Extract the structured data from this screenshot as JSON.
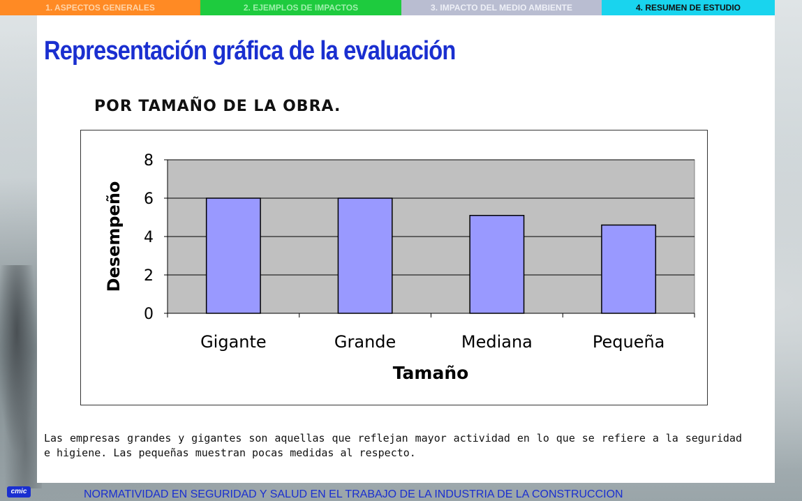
{
  "nav": {
    "tabs": [
      {
        "label": "1. ASPECTOS GENERALES"
      },
      {
        "label": "2. EJEMPLOS DE IMPACTOS"
      },
      {
        "label": "3. IMPACTO DEL MEDIO AMBIENTE"
      },
      {
        "label": "4.  RESUMEN DE ESTUDIO"
      }
    ],
    "active_tab": 3
  },
  "slide": {
    "title": "Representación gráfica de la evaluación",
    "subtitle": "POR TAMAÑO DE LA OBRA.",
    "description": "Las empresas grandes y gigantes son aquellas que reflejan mayor actividad en lo que se refiere a la seguridad e higiene.  Las pequeñas muestran pocas medidas al respecto."
  },
  "footer": {
    "text": "NORMATIVIDAD EN SEGURIDAD Y SALUD EN EL TRABAJO DE LA INDUSTRIA DE LA CONSTRUCCION",
    "logo_text": "cmic"
  },
  "colors": {
    "accent": "#1a2fd0",
    "bar_fill": "#9999ff",
    "plot_bg": "#c0c0c0"
  },
  "chart_data": {
    "type": "bar",
    "categories": [
      "Gigante",
      "Grande",
      "Mediana",
      "Pequeña"
    ],
    "values": [
      6,
      6,
      5.1,
      4.6
    ],
    "xlabel": "Tamaño",
    "ylabel": "Desempeño",
    "ylim": [
      0,
      8
    ],
    "yticks": [
      0,
      2,
      4,
      6,
      8
    ],
    "grid": true,
    "legend": "none"
  }
}
